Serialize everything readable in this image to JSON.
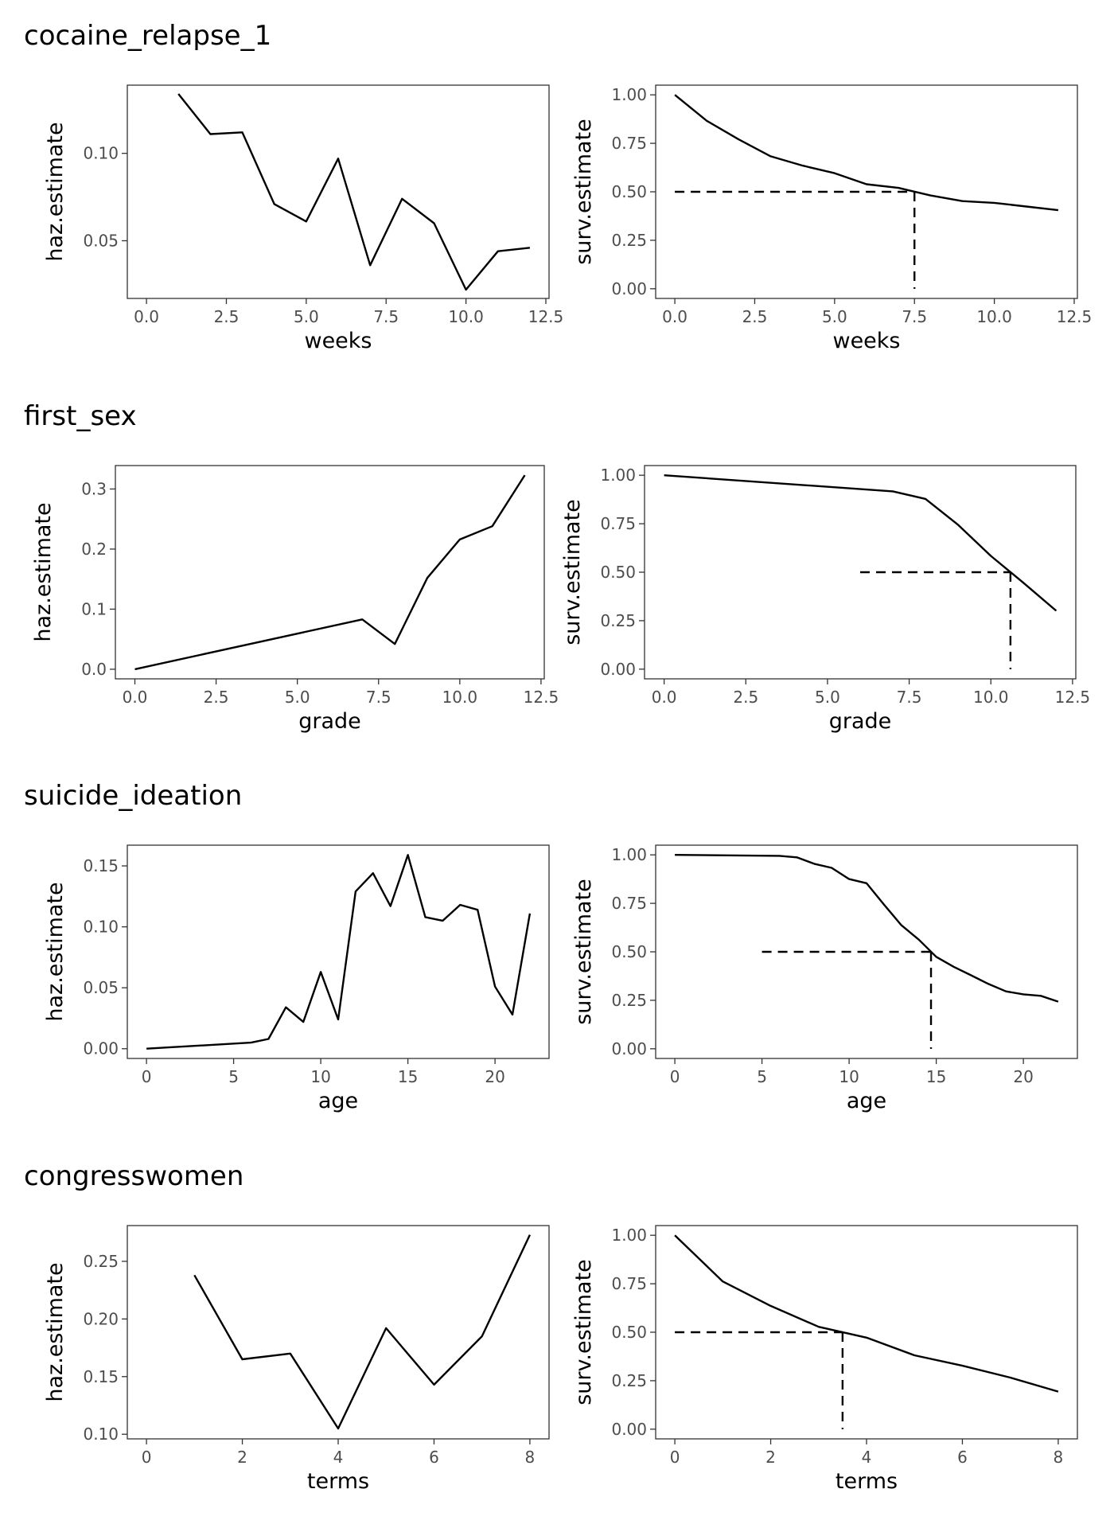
{
  "chart_data": [
    {
      "group": "cocaine_relapse_1",
      "type": "line",
      "xlabel": "weeks",
      "ylabel": "haz.estimate",
      "xlim": [
        -0.6,
        12.6
      ],
      "ylim": [
        0.017,
        0.139
      ],
      "xticks": [
        0,
        2.5,
        5,
        7.5,
        10,
        12.5
      ],
      "xtick_labels": [
        "0.0",
        "2.5",
        "5.0",
        "7.5",
        "10.0",
        "12.5"
      ],
      "yticks": [
        0.05,
        0.1
      ],
      "ytick_labels": [
        "0.05",
        "0.10"
      ],
      "x": [
        1,
        2,
        3,
        4,
        5,
        6,
        7,
        8,
        9,
        10,
        11,
        12
      ],
      "y": [
        0.134,
        0.111,
        0.112,
        0.071,
        0.061,
        0.097,
        0.036,
        0.074,
        0.06,
        0.022,
        0.044,
        0.046
      ]
    },
    {
      "group": "cocaine_relapse_1",
      "type": "line",
      "xlabel": "weeks",
      "ylabel": "surv.estimate",
      "xlim": [
        -0.6,
        12.6
      ],
      "ylim": [
        -0.05,
        1.05
      ],
      "xticks": [
        0,
        2.5,
        5,
        7.5,
        10,
        12.5
      ],
      "xtick_labels": [
        "0.0",
        "2.5",
        "5.0",
        "7.5",
        "10.0",
        "12.5"
      ],
      "yticks": [
        0,
        0.25,
        0.5,
        0.75,
        1
      ],
      "ytick_labels": [
        "0.00",
        "0.25",
        "0.50",
        "0.75",
        "1.00"
      ],
      "x": [
        0,
        1,
        2,
        3,
        4,
        5,
        6,
        7,
        8,
        9,
        10,
        11,
        12
      ],
      "y": [
        1.0,
        0.866,
        0.77,
        0.683,
        0.635,
        0.596,
        0.539,
        0.52,
        0.481,
        0.452,
        0.443,
        0.424,
        0.405
      ],
      "median": 7.5
    },
    {
      "group": "first_sex",
      "type": "line",
      "xlabel": "grade",
      "ylabel": "haz.estimate",
      "xlim": [
        -0.6,
        12.6
      ],
      "ylim": [
        -0.016,
        0.339
      ],
      "xticks": [
        0,
        2.5,
        5,
        7.5,
        10,
        12.5
      ],
      "xtick_labels": [
        "0.0",
        "2.5",
        "5.0",
        "7.5",
        "10.0",
        "12.5"
      ],
      "yticks": [
        0,
        0.1,
        0.2,
        0.3
      ],
      "ytick_labels": [
        "0.0",
        "0.1",
        "0.2",
        "0.3"
      ],
      "x": [
        0,
        7,
        8,
        9,
        10,
        11,
        12
      ],
      "y": [
        0.0,
        0.083,
        0.042,
        0.152,
        0.216,
        0.238,
        0.323
      ]
    },
    {
      "group": "first_sex",
      "type": "line",
      "xlabel": "grade",
      "ylabel": "surv.estimate",
      "xlim": [
        -0.6,
        12.6
      ],
      "ylim": [
        -0.05,
        1.05
      ],
      "xticks": [
        0,
        2.5,
        5,
        7.5,
        10,
        12.5
      ],
      "xtick_labels": [
        "0.0",
        "2.5",
        "5.0",
        "7.5",
        "10.0",
        "12.5"
      ],
      "yticks": [
        0,
        0.25,
        0.5,
        0.75,
        1
      ],
      "ytick_labels": [
        "0.00",
        "0.25",
        "0.50",
        "0.75",
        "1.00"
      ],
      "x": [
        0,
        7,
        8,
        9,
        10,
        11,
        12
      ],
      "y": [
        1.0,
        0.917,
        0.878,
        0.744,
        0.584,
        0.445,
        0.301
      ],
      "median": 10.6
    },
    {
      "group": "suicide_ideation",
      "type": "line",
      "xlabel": "age",
      "ylabel": "haz.estimate",
      "xlim": [
        -1.1,
        23.1
      ],
      "ylim": [
        -0.008,
        0.167
      ],
      "xticks": [
        0,
        5,
        10,
        15,
        20
      ],
      "xtick_labels": [
        "0",
        "5",
        "10",
        "15",
        "20"
      ],
      "yticks": [
        0,
        0.05,
        0.1,
        0.15
      ],
      "ytick_labels": [
        "0.00",
        "0.05",
        "0.10",
        "0.15"
      ],
      "x": [
        0,
        6,
        7,
        8,
        9,
        10,
        11,
        12,
        13,
        14,
        15,
        16,
        17,
        18,
        19,
        20,
        21,
        22
      ],
      "y": [
        0.0,
        0.005,
        0.008,
        0.034,
        0.022,
        0.063,
        0.024,
        0.129,
        0.144,
        0.117,
        0.159,
        0.108,
        0.105,
        0.118,
        0.114,
        0.051,
        0.028,
        0.111
      ]
    },
    {
      "group": "suicide_ideation",
      "type": "line",
      "xlabel": "age",
      "ylabel": "surv.estimate",
      "xlim": [
        -1.1,
        23.1
      ],
      "ylim": [
        -0.05,
        1.05
      ],
      "xticks": [
        0,
        5,
        10,
        15,
        20
      ],
      "xtick_labels": [
        "0",
        "5",
        "10",
        "15",
        "20"
      ],
      "yticks": [
        0,
        0.25,
        0.5,
        0.75,
        1
      ],
      "ytick_labels": [
        "0.00",
        "0.25",
        "0.50",
        "0.75",
        "1.00"
      ],
      "x": [
        0,
        6,
        7,
        8,
        9,
        10,
        11,
        12,
        13,
        14,
        15,
        16,
        17,
        18,
        19,
        20,
        21,
        22
      ],
      "y": [
        1.0,
        0.995,
        0.987,
        0.954,
        0.933,
        0.875,
        0.854,
        0.744,
        0.637,
        0.563,
        0.474,
        0.423,
        0.379,
        0.334,
        0.296,
        0.281,
        0.273,
        0.243
      ],
      "median": 14.7
    },
    {
      "group": "congresswomen",
      "type": "line",
      "xlabel": "terms",
      "ylabel": "haz.estimate",
      "xlim": [
        -0.4,
        8.4
      ],
      "ylim": [
        0.096,
        0.281
      ],
      "xticks": [
        0,
        2,
        4,
        6,
        8
      ],
      "xtick_labels": [
        "0",
        "2",
        "4",
        "6",
        "8"
      ],
      "yticks": [
        0.1,
        0.15,
        0.2,
        0.25
      ],
      "ytick_labels": [
        "0.10",
        "0.15",
        "0.20",
        "0.25"
      ],
      "x": [
        1,
        2,
        3,
        4,
        5,
        6,
        7,
        8
      ],
      "y": [
        0.238,
        0.165,
        0.17,
        0.105,
        0.192,
        0.143,
        0.185,
        0.273
      ]
    },
    {
      "group": "congresswomen",
      "type": "line",
      "xlabel": "terms",
      "ylabel": "surv.estimate",
      "xlim": [
        -0.4,
        8.4
      ],
      "ylim": [
        -0.05,
        1.05
      ],
      "xticks": [
        0,
        2,
        4,
        6,
        8
      ],
      "xtick_labels": [
        "0",
        "2",
        "4",
        "6",
        "8"
      ],
      "yticks": [
        0,
        0.25,
        0.5,
        0.75,
        1
      ],
      "ytick_labels": [
        "0.00",
        "0.25",
        "0.50",
        "0.75",
        "1.00"
      ],
      "x": [
        0,
        1,
        2,
        3,
        4,
        5,
        6,
        7,
        8
      ],
      "y": [
        1.0,
        0.762,
        0.636,
        0.528,
        0.472,
        0.381,
        0.327,
        0.266,
        0.194
      ],
      "median": 3.5
    }
  ]
}
